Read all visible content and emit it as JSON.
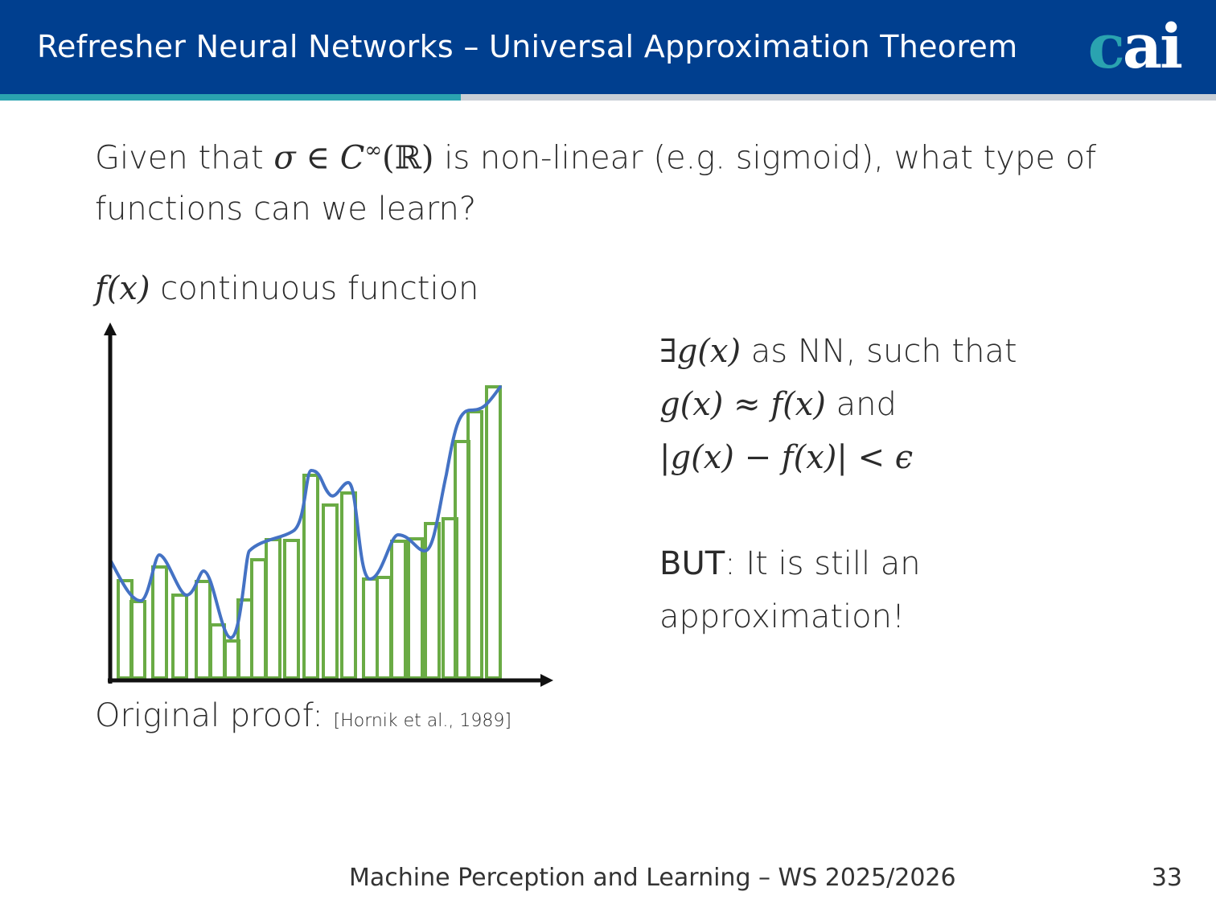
{
  "header": {
    "title": "Refresher Neural Networks – Universal Approximation Theorem",
    "logo_c": "c",
    "logo_ai": "ai",
    "background_color": "#003f8f",
    "accent_color": "#2aa3b0"
  },
  "question": {
    "part1": "Given that ",
    "sigma_expr": "σ ∈ C",
    "superscript": "∞",
    "domain": "(ℝ)",
    "part2": " is non-linear (e.g. sigmoid), what type of functions can we learn?"
  },
  "fx_label": {
    "math": "f(x)",
    "text": " continuous function"
  },
  "right_block": {
    "line1_math": "∃g(x)",
    "line1_text": " as NN, such that",
    "line2_math": "g(x) ≈ f(x)",
    "line2_text": " and",
    "line3_math": "|g(x) − f(x)| < ϵ",
    "but_word": "BUT",
    "but_rest": ": It is still an",
    "but_line2": "approximation!"
  },
  "proof": {
    "label": "Original proof:",
    "citation": "[Hornik et al., 1989]"
  },
  "footer": {
    "course": "Machine Perception and Learning – WS 2025/2026",
    "page_number": "33"
  },
  "figure": {
    "bar_color": "#6aab45",
    "curve_color": "#4472c4",
    "axis_color": "#111111"
  }
}
